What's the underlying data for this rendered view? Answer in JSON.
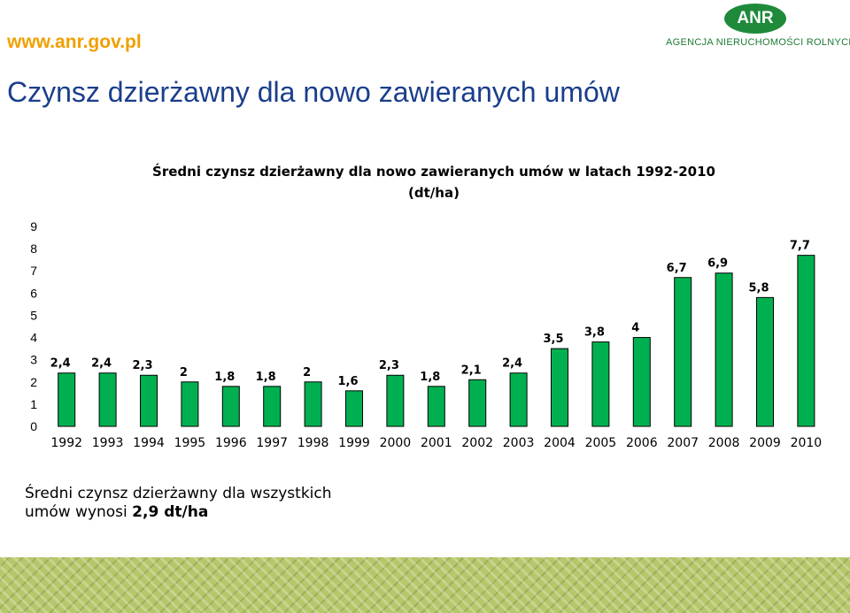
{
  "header": {
    "site_url": "www.anr.gov.pl",
    "logo_abbr": "ANR",
    "logo_name": "AGENCJA NIERUCHOMOŚCI ROLNYCH",
    "slide_title": "Czynsz dzierżawny dla nowo zawieranych umów"
  },
  "colors": {
    "bar_fill": "#00b050",
    "bar_stroke": "#000000",
    "title": "#1a3e8c",
    "url": "#f0a000",
    "logo": "#1e8a3a",
    "footer": "#b5c76a"
  },
  "chart_data": {
    "type": "bar",
    "title_line1": "Średni czynsz dzierżawny dla nowo zawieranych umów w latach 1992-2010",
    "title_line2": "(dt/ha)",
    "categories": [
      "1992",
      "1993",
      "1994",
      "1995",
      "1996",
      "1997",
      "1998",
      "1999",
      "2000",
      "2001",
      "2002",
      "2003",
      "2004",
      "2005",
      "2006",
      "2007",
      "2008",
      "2009",
      "2010"
    ],
    "values": [
      2.4,
      2.4,
      2.3,
      2,
      1.8,
      1.8,
      2,
      1.6,
      2.3,
      1.8,
      2.1,
      2.4,
      3.5,
      3.8,
      4,
      6.7,
      6.9,
      5.8,
      7.7
    ],
    "value_labels": [
      "2,4",
      "2,4",
      "2,3",
      "2",
      "1,8",
      "1,8",
      "2",
      "1,6",
      "2,3",
      "1,8",
      "2,1",
      "2,4",
      "3,5",
      "3,8",
      "4",
      "6,7",
      "6,9",
      "5,8",
      "7,7"
    ],
    "y_ticks": [
      "0",
      "1",
      "2",
      "3",
      "4",
      "5",
      "6",
      "7",
      "8",
      "9"
    ],
    "ylim": [
      0,
      9
    ],
    "grid": false,
    "legend": "none"
  },
  "note": {
    "line1": "Średni czynsz dzierżawny dla wszystkich",
    "line2_prefix": "umów wynosi ",
    "line2_value": "2,9 dt/ha"
  }
}
